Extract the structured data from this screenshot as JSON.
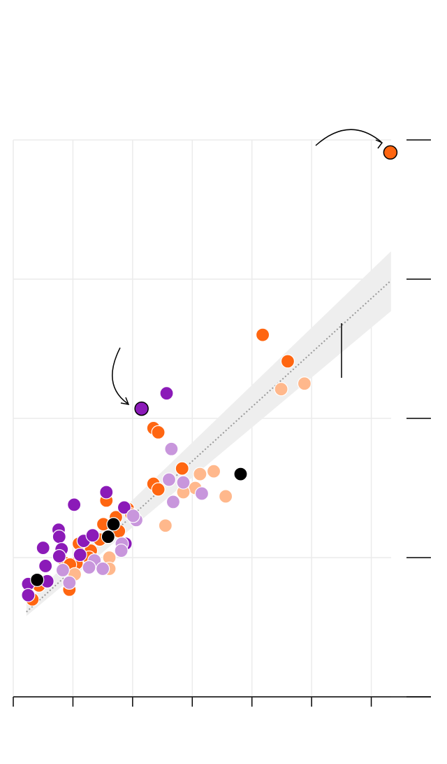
{
  "chart_data": {
    "type": "scatter",
    "xlim": [
      0,
      7
    ],
    "ylim": [
      0,
      4
    ],
    "xticks": [
      0,
      1,
      2,
      3,
      4,
      5,
      6
    ],
    "yticks": [
      0,
      1,
      2,
      3,
      4
    ],
    "grid": true,
    "trend": {
      "x": [
        0.22,
        6.33
      ],
      "y": [
        0.61,
        2.99
      ],
      "lower": [
        0.58,
        2.77
      ],
      "upper": [
        0.68,
        3.2
      ],
      "color": "#999999",
      "band_color": "#eeeeee"
    },
    "series": [
      {
        "color": "#ff6611",
        "x": [
          4.18,
          4.6,
          2.35,
          2.43,
          2.83,
          2.35,
          2.43,
          1.56,
          1.92,
          1.98,
          1.72,
          1.51,
          1.45,
          1.3,
          1.1,
          1.27,
          1.06,
          0.87,
          0.95,
          0.43,
          0.94,
          0.32,
          1.77
        ],
        "values": [
          2.6,
          2.41,
          1.93,
          1.9,
          1.64,
          1.53,
          1.49,
          1.41,
          1.35,
          1.31,
          1.29,
          1.24,
          1.13,
          1.05,
          1.1,
          1.0,
          0.96,
          0.96,
          0.95,
          0.8,
          0.77,
          0.7,
          1.19
        ]
      },
      {
        "color": "#ffb88c",
        "x": [
          4.49,
          4.88,
          3.13,
          3.36,
          3.05,
          2.85,
          3.56,
          2.55,
          1.61,
          1.61,
          1.03
        ],
        "values": [
          2.21,
          2.25,
          1.6,
          1.62,
          1.5,
          1.47,
          1.44,
          1.23,
          1.0,
          0.92,
          0.88
        ]
      },
      {
        "color": "#8b1ab8",
        "x": [
          2.57,
          1.02,
          1.56,
          1.86,
          0.76,
          0.77,
          0.5,
          0.81,
          1.18,
          1.33,
          0.77,
          1.12,
          0.54,
          1.88,
          0.57,
          0.25,
          0.25
        ],
        "values": [
          2.18,
          1.38,
          1.47,
          1.36,
          1.2,
          1.15,
          1.07,
          1.06,
          1.12,
          1.16,
          1.01,
          1.02,
          0.94,
          1.1,
          0.83,
          0.81,
          0.73
        ]
      },
      {
        "color": "#c896dc",
        "x": [
          2.65,
          2.61,
          2.85,
          3.16,
          2.68,
          2.06,
          2.01,
          1.82,
          1.81,
          1.36,
          1.27,
          1.5,
          0.83,
          0.94
        ],
        "values": [
          1.78,
          1.56,
          1.54,
          1.46,
          1.4,
          1.27,
          1.3,
          1.1,
          1.05,
          0.98,
          0.93,
          0.92,
          0.91,
          0.82
        ]
      },
      {
        "color": "#000000",
        "x": [
          0.4,
          1.59,
          1.68,
          3.81
        ],
        "values": [
          0.84,
          1.15,
          1.24,
          1.6
        ]
      },
      {
        "color": "#8b1ab8",
        "outline": "#000000",
        "x": [
          2.15
        ],
        "values": [
          2.07
        ]
      },
      {
        "color": "#ff6611",
        "outline": "#000000",
        "x": [
          6.32
        ],
        "values": [
          3.91
        ]
      }
    ]
  }
}
